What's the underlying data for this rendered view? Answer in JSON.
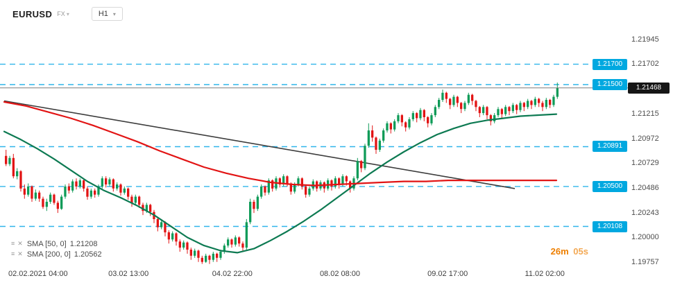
{
  "header": {
    "symbol": "EURUSD",
    "market": "FX",
    "timeframe": "H1",
    "caret": "▾"
  },
  "icons": {
    "menu": "≡",
    "close": "✕"
  },
  "legend": {
    "items": [
      {
        "label": "SMA [50, 0]",
        "value": "1.21208"
      },
      {
        "label": "SMA [200, 0]",
        "value": "1.20562"
      }
    ]
  },
  "countdown": {
    "minutes": "26m",
    "seconds": "05s"
  },
  "chart_data": {
    "type": "candlestick",
    "symbol": "EURUSD",
    "timeframe": "H1",
    "ylim": [
      1.1971,
      1.2199
    ],
    "up_color": "#0f9b58",
    "down_color": "#e21414",
    "level_color": "#2fb5ea",
    "current_price_line_color": "#7a7a7a",
    "y_ticks": [
      1.21945,
      1.21702,
      1.21468,
      1.21215,
      1.20972,
      1.20729,
      1.20486,
      1.20243,
      1.2,
      1.19757
    ],
    "x_ticks": [
      {
        "f": 0.061,
        "label": "02.02.2021 04:00"
      },
      {
        "f": 0.224,
        "label": "03.02 13:00"
      },
      {
        "f": 0.411,
        "label": "04.02 22:00"
      },
      {
        "f": 0.605,
        "label": "08.02 08:00"
      },
      {
        "f": 0.799,
        "label": "09.02 17:00"
      },
      {
        "f": 0.974,
        "label": "11.02 02:00"
      }
    ],
    "levels": [
      {
        "price": 1.217,
        "label": "1.21700"
      },
      {
        "price": 1.215,
        "label": "1.21500"
      },
      {
        "price": 1.20891,
        "label": "1.20891"
      },
      {
        "price": 1.205,
        "label": "1.20500"
      },
      {
        "price": 1.20108,
        "label": "1.20108"
      }
    ],
    "current_price": {
      "value": 1.21468,
      "label": "1.21468"
    },
    "trendline": {
      "color": "#3c3c3c",
      "from": [
        0.0,
        1.2134
      ],
      "to": [
        0.92,
        1.2048
      ]
    },
    "sma50": {
      "name": "SMA [50, 0]",
      "last_value": 1.21208,
      "color": "#0d7a52",
      "points": [
        [
          0.0,
          1.2104
        ],
        [
          0.03,
          1.2096
        ],
        [
          0.06,
          1.2087
        ],
        [
          0.09,
          1.2077
        ],
        [
          0.12,
          1.2066
        ],
        [
          0.15,
          1.2055
        ],
        [
          0.18,
          1.2046
        ],
        [
          0.21,
          1.2039
        ],
        [
          0.24,
          1.2031
        ],
        [
          0.27,
          1.2022
        ],
        [
          0.3,
          1.2011
        ],
        [
          0.33,
          1.2
        ],
        [
          0.36,
          1.1992
        ],
        [
          0.39,
          1.1987
        ],
        [
          0.42,
          1.1985
        ],
        [
          0.45,
          1.1989
        ],
        [
          0.48,
          1.1997
        ],
        [
          0.51,
          1.2006
        ],
        [
          0.54,
          1.2016
        ],
        [
          0.57,
          1.2027
        ],
        [
          0.6,
          1.2039
        ],
        [
          0.63,
          1.2051
        ],
        [
          0.66,
          1.2063
        ],
        [
          0.69,
          1.2074
        ],
        [
          0.72,
          1.2084
        ],
        [
          0.75,
          1.2093
        ],
        [
          0.78,
          1.2101
        ],
        [
          0.81,
          1.2107
        ],
        [
          0.84,
          1.2112
        ],
        [
          0.87,
          1.2115
        ],
        [
          0.9,
          1.2117
        ],
        [
          0.93,
          1.2119
        ],
        [
          0.96,
          1.212
        ],
        [
          0.995,
          1.2121
        ]
      ]
    },
    "sma200": {
      "name": "SMA [200, 0]",
      "last_value": 1.20562,
      "color": "#e21414",
      "points": [
        [
          0.0,
          1.2133
        ],
        [
          0.04,
          1.2129
        ],
        [
          0.08,
          1.2123
        ],
        [
          0.12,
          1.2117
        ],
        [
          0.16,
          1.211
        ],
        [
          0.2,
          1.2102
        ],
        [
          0.24,
          1.2094
        ],
        [
          0.28,
          1.2085
        ],
        [
          0.32,
          1.2077
        ],
        [
          0.36,
          1.2069
        ],
        [
          0.4,
          1.2063
        ],
        [
          0.44,
          1.2058
        ],
        [
          0.48,
          1.2054
        ],
        [
          0.52,
          1.2052
        ],
        [
          0.56,
          1.2051
        ],
        [
          0.6,
          1.2052
        ],
        [
          0.64,
          1.2053
        ],
        [
          0.68,
          1.2054
        ],
        [
          0.72,
          1.2055
        ],
        [
          0.76,
          1.2055
        ],
        [
          0.8,
          1.2056
        ],
        [
          0.85,
          1.2056
        ],
        [
          0.9,
          1.2056
        ],
        [
          0.995,
          1.2056
        ]
      ]
    },
    "candles": [
      [
        1.208,
        1.2086,
        1.207,
        1.2072
      ],
      [
        1.2072,
        1.208,
        1.207,
        1.2078
      ],
      [
        1.2078,
        1.2082,
        1.2058,
        1.206
      ],
      [
        1.206,
        1.2068,
        1.2057,
        1.2065
      ],
      [
        1.2065,
        1.2066,
        1.2045,
        1.2048
      ],
      [
        1.2048,
        1.2052,
        1.2038,
        1.2042
      ],
      [
        1.2042,
        1.2053,
        1.204,
        1.205
      ],
      [
        1.205,
        1.2051,
        1.2035,
        1.2038
      ],
      [
        1.2038,
        1.2047,
        1.2036,
        1.2044
      ],
      [
        1.2044,
        1.2046,
        1.2035,
        1.2038
      ],
      [
        1.2038,
        1.204,
        1.2028,
        1.203
      ],
      [
        1.203,
        1.2038,
        1.2026,
        1.2035
      ],
      [
        1.2035,
        1.2044,
        1.2033,
        1.2042
      ],
      [
        1.2042,
        1.2043,
        1.2032,
        1.2034
      ],
      [
        1.2034,
        1.2036,
        1.2024,
        1.2028
      ],
      [
        1.2028,
        1.2042,
        1.2027,
        1.204
      ],
      [
        1.204,
        1.2052,
        1.2038,
        1.205
      ],
      [
        1.205,
        1.2053,
        1.2043,
        1.2046
      ],
      [
        1.2046,
        1.2057,
        1.2044,
        1.2055
      ],
      [
        1.2055,
        1.2058,
        1.2047,
        1.205
      ],
      [
        1.205,
        1.2058,
        1.2048,
        1.2056
      ],
      [
        1.2056,
        1.2057,
        1.2045,
        1.2048
      ],
      [
        1.2048,
        1.205,
        1.2037,
        1.204
      ],
      [
        1.204,
        1.2048,
        1.2038,
        1.2046
      ],
      [
        1.2046,
        1.2048,
        1.2039,
        1.2042
      ],
      [
        1.2042,
        1.2052,
        1.204,
        1.205
      ],
      [
        1.205,
        1.206,
        1.2048,
        1.2058
      ],
      [
        1.2058,
        1.206,
        1.2049,
        1.2052
      ],
      [
        1.2052,
        1.2059,
        1.205,
        1.2057
      ],
      [
        1.2057,
        1.2058,
        1.2045,
        1.2048
      ],
      [
        1.2048,
        1.2054,
        1.2046,
        1.2052
      ],
      [
        1.2052,
        1.2053,
        1.2041,
        1.2044
      ],
      [
        1.2044,
        1.205,
        1.2042,
        1.2048
      ],
      [
        1.2048,
        1.2049,
        1.2037,
        1.204
      ],
      [
        1.204,
        1.2042,
        1.203,
        1.2034
      ],
      [
        1.2034,
        1.2042,
        1.2032,
        1.204
      ],
      [
        1.204,
        1.2041,
        1.2029,
        1.2032
      ],
      [
        1.2032,
        1.2034,
        1.2022,
        1.2026
      ],
      [
        1.2026,
        1.2034,
        1.2024,
        1.2032
      ],
      [
        1.2032,
        1.2033,
        1.2021,
        1.2025
      ],
      [
        1.2025,
        1.2027,
        1.2014,
        1.2018
      ],
      [
        1.2018,
        1.202,
        1.2006,
        1.201
      ],
      [
        1.201,
        1.2018,
        1.2008,
        1.2015
      ],
      [
        1.2015,
        1.2016,
        1.2001,
        1.2005
      ],
      [
        1.2005,
        1.2007,
        1.1994,
        1.1998
      ],
      [
        1.1998,
        1.2006,
        1.1996,
        1.2004
      ],
      [
        1.2004,
        1.2005,
        1.1992,
        1.1996
      ],
      [
        1.1996,
        1.1998,
        1.1986,
        1.199
      ],
      [
        1.199,
        1.1997,
        1.1988,
        1.1995
      ],
      [
        1.1995,
        1.1996,
        1.1984,
        1.1988
      ],
      [
        1.1988,
        1.199,
        1.1978,
        1.1982
      ],
      [
        1.1982,
        1.1989,
        1.198,
        1.1987
      ],
      [
        1.1987,
        1.1988,
        1.1976,
        1.198
      ],
      [
        1.198,
        1.1982,
        1.1974,
        1.1976
      ],
      [
        1.1976,
        1.1984,
        1.1975,
        1.1982
      ],
      [
        1.1982,
        1.1983,
        1.1974,
        1.1978
      ],
      [
        1.1978,
        1.1986,
        1.1976,
        1.1984
      ],
      [
        1.1984,
        1.1985,
        1.1976,
        1.198
      ],
      [
        1.198,
        1.1988,
        1.1978,
        1.1986
      ],
      [
        1.1986,
        1.1994,
        1.1984,
        1.1992
      ],
      [
        1.1992,
        1.2,
        1.199,
        1.1998
      ],
      [
        1.1998,
        1.1999,
        1.199,
        1.1993
      ],
      [
        1.1993,
        1.2002,
        1.1991,
        1.2
      ],
      [
        1.2,
        1.2001,
        1.1991,
        1.1994
      ],
      [
        1.1994,
        1.1996,
        1.1986,
        1.199
      ],
      [
        1.199,
        1.2018,
        1.1988,
        1.2015
      ],
      [
        1.2015,
        1.2038,
        1.2013,
        1.2035
      ],
      [
        1.2035,
        1.2037,
        1.2024,
        1.2028
      ],
      [
        1.2028,
        1.2042,
        1.2026,
        1.204
      ],
      [
        1.204,
        1.2052,
        1.2038,
        1.205
      ],
      [
        1.205,
        1.2051,
        1.2041,
        1.2044
      ],
      [
        1.2044,
        1.2058,
        1.2042,
        1.2056
      ],
      [
        1.2056,
        1.2057,
        1.2045,
        1.2048
      ],
      [
        1.2048,
        1.206,
        1.2046,
        1.2058
      ],
      [
        1.2058,
        1.2059,
        1.2049,
        1.2052
      ],
      [
        1.2052,
        1.2062,
        1.205,
        1.206
      ],
      [
        1.206,
        1.2061,
        1.205,
        1.2053
      ],
      [
        1.2053,
        1.2054,
        1.2042,
        1.2045
      ],
      [
        1.2045,
        1.2054,
        1.2043,
        1.2052
      ],
      [
        1.2052,
        1.206,
        1.205,
        1.2058
      ],
      [
        1.2058,
        1.2059,
        1.2047,
        1.205
      ],
      [
        1.205,
        1.2051,
        1.2039,
        1.2042
      ],
      [
        1.2042,
        1.205,
        1.204,
        1.2048
      ],
      [
        1.2048,
        1.2057,
        1.2046,
        1.2055
      ],
      [
        1.2055,
        1.2056,
        1.2045,
        1.2048
      ],
      [
        1.2048,
        1.2056,
        1.2046,
        1.2054
      ],
      [
        1.2054,
        1.2055,
        1.2044,
        1.2048
      ],
      [
        1.2048,
        1.2058,
        1.2046,
        1.2056
      ],
      [
        1.2056,
        1.2057,
        1.2046,
        1.205
      ],
      [
        1.205,
        1.206,
        1.2048,
        1.2058
      ],
      [
        1.2058,
        1.2059,
        1.2048,
        1.2052
      ],
      [
        1.2052,
        1.2062,
        1.205,
        1.206
      ],
      [
        1.206,
        1.2061,
        1.2051,
        1.2055
      ],
      [
        1.2055,
        1.2056,
        1.2044,
        1.2048
      ],
      [
        1.2048,
        1.206,
        1.2046,
        1.2058
      ],
      [
        1.2058,
        1.2078,
        1.2056,
        1.2075
      ],
      [
        1.2075,
        1.2076,
        1.2064,
        1.2068
      ],
      [
        1.2068,
        1.2092,
        1.2066,
        1.209
      ],
      [
        1.209,
        1.2112,
        1.2088,
        1.2105
      ],
      [
        1.2105,
        1.211,
        1.2094,
        1.2098
      ],
      [
        1.2098,
        1.2099,
        1.2082,
        1.2086
      ],
      [
        1.2086,
        1.2097,
        1.2084,
        1.2095
      ],
      [
        1.2095,
        1.2107,
        1.2093,
        1.2105
      ],
      [
        1.2105,
        1.2114,
        1.2103,
        1.2112
      ],
      [
        1.2112,
        1.2113,
        1.2102,
        1.2106
      ],
      [
        1.2106,
        1.2116,
        1.2104,
        1.2114
      ],
      [
        1.2114,
        1.2122,
        1.2112,
        1.212
      ],
      [
        1.212,
        1.2121,
        1.2109,
        1.2113
      ],
      [
        1.2113,
        1.2114,
        1.2104,
        1.2108
      ],
      [
        1.2108,
        1.2118,
        1.2106,
        1.2116
      ],
      [
        1.2116,
        1.2124,
        1.2114,
        1.2122
      ],
      [
        1.2122,
        1.2123,
        1.2113,
        1.2117
      ],
      [
        1.2117,
        1.2127,
        1.2115,
        1.2125
      ],
      [
        1.2125,
        1.2126,
        1.2114,
        1.2118
      ],
      [
        1.2118,
        1.2119,
        1.2108,
        1.2112
      ],
      [
        1.2112,
        1.2122,
        1.211,
        1.212
      ],
      [
        1.212,
        1.213,
        1.2118,
        1.2128
      ],
      [
        1.2128,
        1.2137,
        1.2126,
        1.2135
      ],
      [
        1.2135,
        1.2145,
        1.2133,
        1.2142
      ],
      [
        1.2142,
        1.2143,
        1.2132,
        1.2136
      ],
      [
        1.2136,
        1.2137,
        1.2126,
        1.213
      ],
      [
        1.213,
        1.214,
        1.2128,
        1.2138
      ],
      [
        1.2138,
        1.2139,
        1.2128,
        1.2132
      ],
      [
        1.2132,
        1.2133,
        1.2122,
        1.2126
      ],
      [
        1.2126,
        1.2134,
        1.2124,
        1.2132
      ],
      [
        1.2132,
        1.2142,
        1.213,
        1.214
      ],
      [
        1.214,
        1.2141,
        1.213,
        1.2134
      ],
      [
        1.2134,
        1.2135,
        1.2124,
        1.2128
      ],
      [
        1.2128,
        1.2129,
        1.2118,
        1.2122
      ],
      [
        1.2122,
        1.213,
        1.212,
        1.2128
      ],
      [
        1.2128,
        1.2129,
        1.2116,
        1.212
      ],
      [
        1.212,
        1.2121,
        1.211,
        1.2114
      ],
      [
        1.2114,
        1.2122,
        1.2112,
        1.212
      ],
      [
        1.212,
        1.2128,
        1.2118,
        1.2126
      ],
      [
        1.2126,
        1.2127,
        1.2117,
        1.2121
      ],
      [
        1.2121,
        1.213,
        1.2119,
        1.2128
      ],
      [
        1.2128,
        1.2129,
        1.212,
        1.2124
      ],
      [
        1.2124,
        1.2132,
        1.2122,
        1.213
      ],
      [
        1.213,
        1.2131,
        1.2121,
        1.2125
      ],
      [
        1.2125,
        1.2134,
        1.2123,
        1.2132
      ],
      [
        1.2132,
        1.2133,
        1.2124,
        1.2128
      ],
      [
        1.2128,
        1.2136,
        1.2126,
        1.2134
      ],
      [
        1.2134,
        1.2135,
        1.2126,
        1.213
      ],
      [
        1.213,
        1.2138,
        1.2128,
        1.2136
      ],
      [
        1.2136,
        1.2137,
        1.2128,
        1.2132
      ],
      [
        1.2132,
        1.2134,
        1.2124,
        1.2128
      ],
      [
        1.2128,
        1.2137,
        1.2126,
        1.2135
      ],
      [
        1.2135,
        1.2136,
        1.2127,
        1.213
      ],
      [
        1.213,
        1.214,
        1.2128,
        1.2138
      ],
      [
        1.2138,
        1.2152,
        1.2136,
        1.21468
      ]
    ]
  }
}
